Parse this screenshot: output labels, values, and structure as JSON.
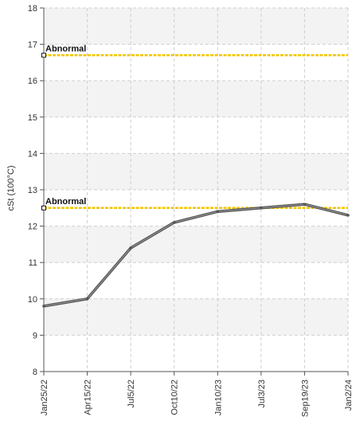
{
  "chart_data": {
    "type": "line",
    "title": "",
    "xlabel": "",
    "ylabel": "cSt (100°C)",
    "ylim": [
      8,
      18
    ],
    "yticks": [
      8,
      9,
      10,
      11,
      12,
      13,
      14,
      15,
      16,
      17,
      18
    ],
    "grid": true,
    "categories": [
      "Jan25/22",
      "Apr15/22",
      "Jul5/22",
      "Oct10/22",
      "Jan10/23",
      "Jul3/23",
      "Sep19/23",
      "Jan2/24"
    ],
    "series": [
      {
        "values": [
          9.8,
          10.0,
          11.4,
          12.1,
          12.4,
          12.5,
          12.6,
          12.3
        ]
      }
    ],
    "thresholds": [
      {
        "label": "Abnormal",
        "value": 16.7
      },
      {
        "label": "Abnormal",
        "value": 12.5
      }
    ],
    "colors": {
      "line": "#555555",
      "threshold": "#f2c500",
      "band": "#f3f3f3"
    }
  }
}
